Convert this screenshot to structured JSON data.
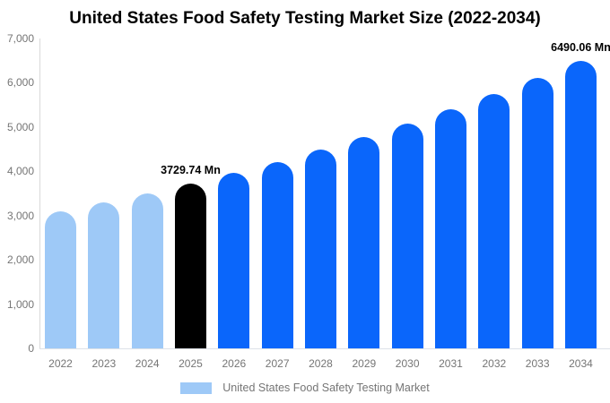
{
  "title": "United States Food Safety Testing Market Size (2022-2034)",
  "colors": {
    "historical_bar": "#9ec9f7",
    "highlight_bar": "#000000",
    "forecast_bar": "#0a66fb",
    "axis_text": "#757575",
    "data_label_text": "#000000",
    "axis_line": "#d9d9d9",
    "background": "#ffffff"
  },
  "chart_data": {
    "type": "bar",
    "title": "United States Food Safety Testing Market Size (2022-2034)",
    "unit": "Mn",
    "categories": [
      "2022",
      "2023",
      "2024",
      "2025",
      "2026",
      "2027",
      "2028",
      "2029",
      "2030",
      "2031",
      "2032",
      "2033",
      "2034"
    ],
    "values": [
      3100,
      3293,
      3502,
      3729.74,
      3966,
      4218,
      4486,
      4771,
      5074,
      5397,
      5740,
      6104,
      6490.06
    ],
    "bar_roles": [
      "historical",
      "historical",
      "historical",
      "highlight",
      "forecast",
      "forecast",
      "forecast",
      "forecast",
      "forecast",
      "forecast",
      "forecast",
      "forecast",
      "forecast"
    ],
    "data_labels": [
      {
        "category": "2025",
        "text": "3729.74 Mn"
      },
      {
        "category": "2034",
        "text": "6490.06 Mn"
      }
    ],
    "xlabel": "",
    "ylabel": "",
    "ylim": [
      0,
      7000
    ],
    "yticks": [
      {
        "value": 0,
        "label": "0"
      },
      {
        "value": 1000,
        "label": "1,000"
      },
      {
        "value": 2000,
        "label": "2,000"
      },
      {
        "value": 3000,
        "label": "3,000"
      },
      {
        "value": 4000,
        "label": "4,000"
      },
      {
        "value": 5000,
        "label": "5,000"
      },
      {
        "value": 6000,
        "label": "6,000"
      },
      {
        "value": 7000,
        "label": "7,000"
      }
    ],
    "grid": false,
    "legend": {
      "position": "bottom",
      "label": "United States Food Safety Testing Market",
      "swatch_color": "#9ec9f7"
    }
  }
}
